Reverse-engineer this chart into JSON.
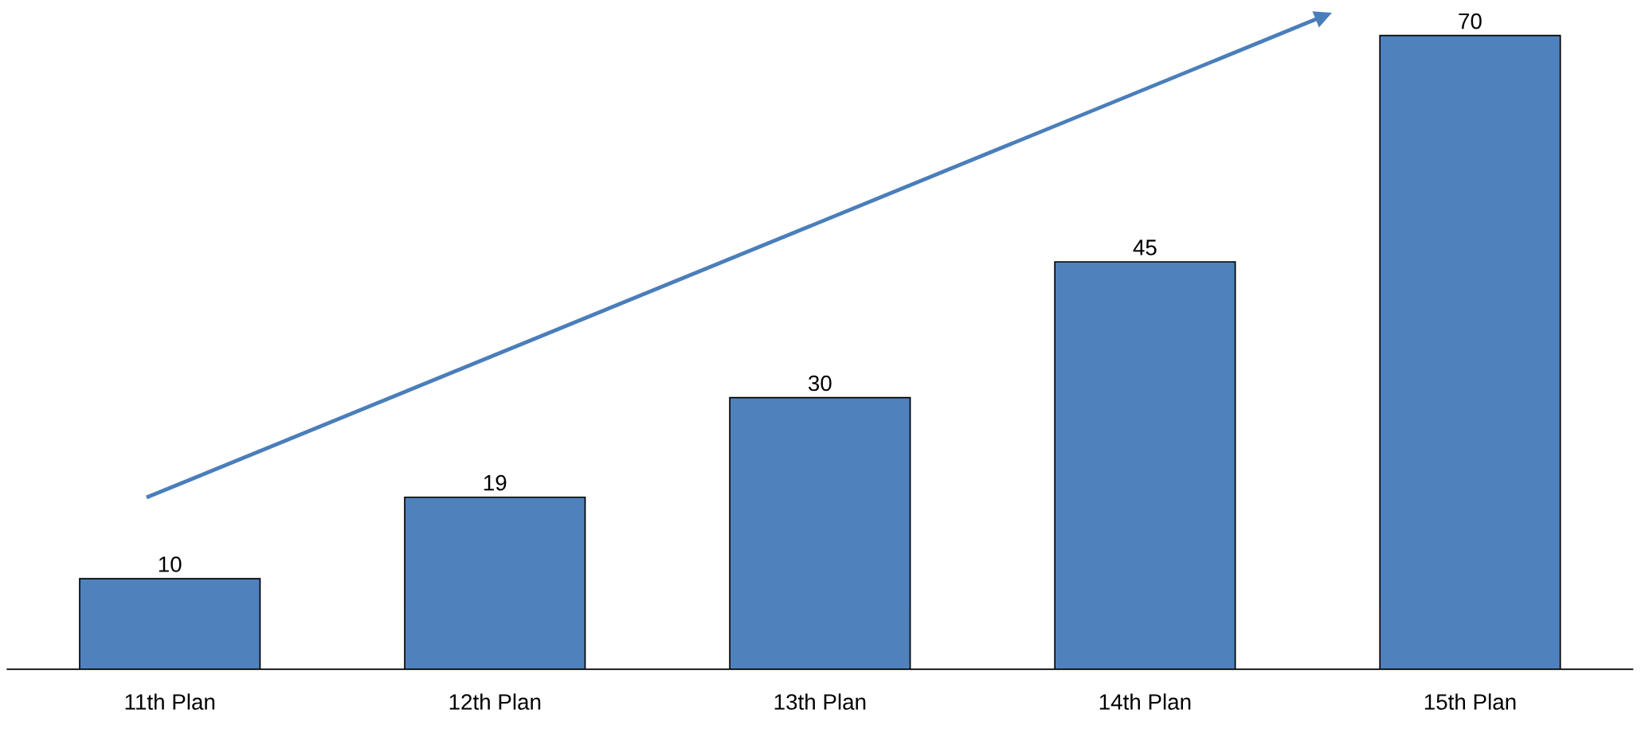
{
  "chart_data": {
    "type": "bar",
    "categories": [
      "11th Plan",
      "12th Plan",
      "13th Plan",
      "14th Plan",
      "15th Plan"
    ],
    "values": [
      10,
      19,
      30,
      45,
      70
    ],
    "color": "#4f81bd",
    "data_labels": true,
    "grid": false,
    "legend": false
  }
}
